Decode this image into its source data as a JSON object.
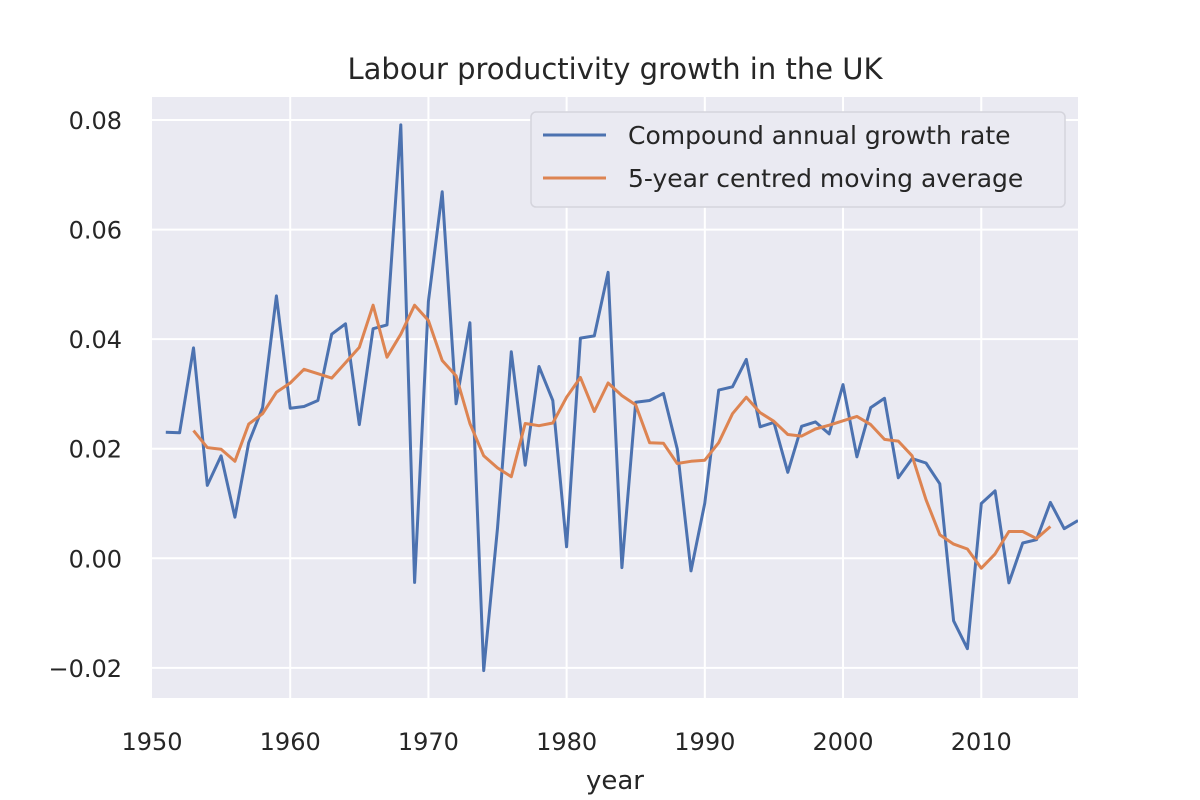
{
  "chart_data": {
    "type": "line",
    "title": "Labour productivity growth in the UK",
    "xlabel": "year",
    "ylabel": "",
    "xlim": [
      1950,
      2017
    ],
    "ylim": [
      -0.0255,
      0.0842
    ],
    "xticks": [
      1950,
      1960,
      1970,
      1980,
      1990,
      2000,
      2010
    ],
    "xtick_labels": [
      "1950",
      "1960",
      "1970",
      "1980",
      "1990",
      "2000",
      "2010"
    ],
    "yticks": [
      -0.02,
      0.0,
      0.02,
      0.04,
      0.06,
      0.08
    ],
    "ytick_labels": [
      "−0.02",
      "0.00",
      "0.02",
      "0.04",
      "0.06",
      "0.08"
    ],
    "grid": true,
    "legend_position": "top-right",
    "background": "#eaeaf2",
    "series": [
      {
        "name": "Compound annual growth rate",
        "color": "#4c72b0",
        "x": [
          1951,
          1952,
          1953,
          1954,
          1955,
          1956,
          1957,
          1958,
          1959,
          1960,
          1961,
          1962,
          1963,
          1964,
          1965,
          1966,
          1967,
          1968,
          1969,
          1970,
          1971,
          1972,
          1973,
          1974,
          1975,
          1976,
          1977,
          1978,
          1979,
          1980,
          1981,
          1982,
          1983,
          1984,
          1985,
          1986,
          1987,
          1988,
          1989,
          1990,
          1991,
          1992,
          1993,
          1994,
          1995,
          1996,
          1997,
          1998,
          1999,
          2000,
          2001,
          2002,
          2003,
          2004,
          2005,
          2006,
          2007,
          2008,
          2009,
          2010,
          2011,
          2012,
          2013,
          2014,
          2015,
          2016,
          2017
        ],
        "y": [
          0.023,
          0.0229,
          0.0384,
          0.0133,
          0.0187,
          0.0075,
          0.0211,
          0.0275,
          0.0479,
          0.0274,
          0.0277,
          0.0288,
          0.0409,
          0.0428,
          0.0244,
          0.0419,
          0.0426,
          0.0791,
          -0.0044,
          0.0469,
          0.0669,
          0.0282,
          0.043,
          -0.0205,
          0.0055,
          0.0377,
          0.017,
          0.035,
          0.0288,
          0.0021,
          0.0402,
          0.0406,
          0.0522,
          -0.0017,
          0.0285,
          0.0288,
          0.0301,
          0.02,
          -0.0023,
          0.0101,
          0.0307,
          0.0313,
          0.0363,
          0.024,
          0.0248,
          0.0157,
          0.0241,
          0.0249,
          0.0227,
          0.0317,
          0.0185,
          0.0275,
          0.0292,
          0.0147,
          0.0182,
          0.0174,
          0.0136,
          -0.0114,
          -0.0165,
          0.01,
          0.0123,
          -0.0045,
          0.0028,
          0.0034,
          0.0102,
          0.0054,
          0.0069
        ]
      },
      {
        "name": "5-year centred moving average",
        "color": "#dd8452",
        "x": [
          1953,
          1954,
          1955,
          1956,
          1957,
          1958,
          1959,
          1960,
          1961,
          1962,
          1963,
          1964,
          1965,
          1966,
          1967,
          1968,
          1969,
          1970,
          1971,
          1972,
          1973,
          1974,
          1975,
          1976,
          1977,
          1978,
          1979,
          1980,
          1981,
          1982,
          1983,
          1984,
          1985,
          1986,
          1987,
          1988,
          1989,
          1990,
          1991,
          1992,
          1993,
          1994,
          1995,
          1996,
          1997,
          1998,
          1999,
          2000,
          2001,
          2002,
          2003,
          2004,
          2005,
          2006,
          2007,
          2008,
          2009,
          2010,
          2011,
          2012,
          2013,
          2014,
          2015
        ],
        "y": [
          0.0233,
          0.0202,
          0.0199,
          0.0177,
          0.0245,
          0.0264,
          0.0303,
          0.032,
          0.0345,
          0.0337,
          0.0329,
          0.0357,
          0.0385,
          0.0462,
          0.0367,
          0.0409,
          0.0462,
          0.0434,
          0.0361,
          0.0333,
          0.0246,
          0.0187,
          0.0165,
          0.0149,
          0.0246,
          0.0242,
          0.0247,
          0.0294,
          0.033,
          0.0268,
          0.032,
          0.0297,
          0.028,
          0.0211,
          0.021,
          0.0173,
          0.0177,
          0.0179,
          0.0211,
          0.0264,
          0.0294,
          0.0266,
          0.025,
          0.0226,
          0.0223,
          0.0236,
          0.0243,
          0.0251,
          0.0259,
          0.0244,
          0.0217,
          0.0214,
          0.0187,
          0.0107,
          0.0043,
          0.0026,
          0.0017,
          -0.0018,
          0.0008,
          0.0049,
          0.0049,
          0.0036,
          0.0058
        ]
      }
    ]
  }
}
